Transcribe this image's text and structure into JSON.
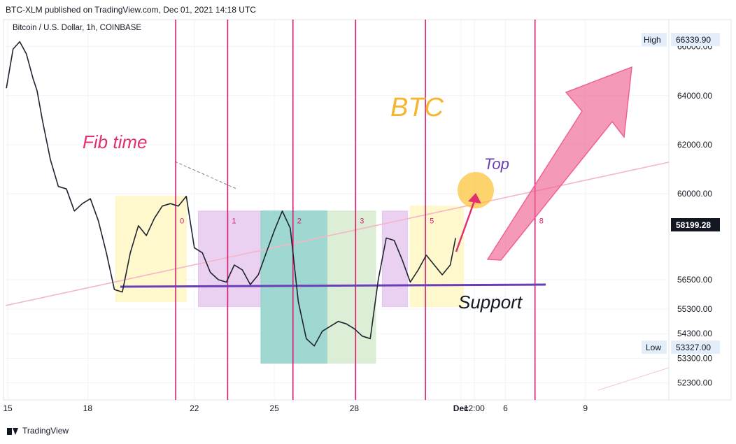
{
  "header": {
    "published": "BTC-XLM published on TradingView.com, Dec 01, 2021 14:18 UTC",
    "symbol": "Bitcoin / U.S. Dollar, 1h, COINBASE"
  },
  "footer": {
    "brand": "TradingView",
    "logo_icon": "tradingview-logo-icon"
  },
  "colors": {
    "price_line": "#1e2330",
    "fib_line": "#d81b72",
    "support": "#6a3fb5",
    "btc_text": "#f5b52e",
    "fib_text": "#e0306f",
    "top_text": "#6a3fb5",
    "arrow": "#f06292",
    "high_low_badge": "#e3eefa"
  },
  "chart_data": {
    "type": "line",
    "title": "BTC",
    "xlabel": "",
    "ylabel": "",
    "x_ticks": [
      "15",
      "18",
      "22",
      "25",
      "28",
      "Dec",
      "12:00",
      "6",
      "9"
    ],
    "y_ticks": [
      52300,
      53300,
      54300,
      55300,
      56500,
      60000,
      62000,
      64000,
      66000
    ],
    "y_tick_labels": [
      "52300.00",
      "53300.00",
      "54300.00",
      "55300.00",
      "56500.00",
      "60000.00",
      "62000.00",
      "64000.00",
      "66000.00"
    ],
    "ylim": [
      51600,
      67100
    ],
    "x_range_days": [
      14.92,
      39.8
    ],
    "series": [
      {
        "x": [
          14.95,
          15.2,
          15.45,
          15.7,
          15.95,
          16.1,
          16.3,
          16.6,
          16.9,
          17.2,
          17.5,
          17.8,
          18.1,
          18.4,
          18.7,
          19.0,
          19.3,
          19.6,
          19.9,
          20.2,
          20.5,
          20.8,
          21.1,
          21.4,
          21.7,
          22.0,
          22.3,
          22.6,
          22.9,
          23.2,
          23.5,
          23.8,
          24.1,
          24.4,
          24.7,
          25.0,
          25.3,
          25.6,
          25.9,
          26.2,
          26.5,
          26.8,
          27.1,
          27.4,
          27.7,
          28.0,
          28.3,
          28.6,
          28.9,
          29.2,
          29.5,
          29.8,
          30.1,
          30.4,
          30.7,
          31.0,
          31.3,
          31.6,
          31.8
        ],
        "values": [
          64300,
          65900,
          66200,
          65700,
          64700,
          64200,
          63000,
          61400,
          60300,
          60200,
          59300,
          59600,
          59800,
          58900,
          57600,
          56100,
          56000,
          57600,
          58700,
          58300,
          59000,
          59500,
          59600,
          59500,
          59900,
          57800,
          57600,
          56800,
          56500,
          56400,
          57100,
          56900,
          56300,
          56700,
          57600,
          58500,
          59300,
          58600,
          55600,
          54100,
          53800,
          54400,
          54600,
          54800,
          54700,
          54500,
          54200,
          54100,
          56500,
          58200,
          58100,
          57300,
          56400,
          56900,
          57500,
          57100,
          56700,
          57100,
          58199
        ]
      }
    ],
    "last_price": "58199.28",
    "high": {
      "label": "High",
      "value": "66339.90"
    },
    "low": {
      "label": "Low",
      "value": "53327.00"
    },
    "fib_time_lines": [
      {
        "x": 21.3,
        "label": "0"
      },
      {
        "x": 23.25,
        "label": "1"
      },
      {
        "x": 25.7,
        "label": "2"
      },
      {
        "x": 28.05,
        "label": "3"
      },
      {
        "x": 30.67,
        "label": "5"
      },
      {
        "x": 34.78,
        "label": "8"
      }
    ],
    "boxes": [
      {
        "x0": 19.05,
        "x1": 21.7,
        "y0": 55600,
        "y1": 59900,
        "color": "#fff7c4"
      },
      {
        "x0": 22.15,
        "x1": 24.5,
        "y0": 55400,
        "y1": 59300,
        "color": "#e6c8ee"
      },
      {
        "x0": 24.5,
        "x1": 27.0,
        "y0": 53100,
        "y1": 59300,
        "color": "#8ed1c8"
      },
      {
        "x0": 27.0,
        "x1": 28.8,
        "y0": 53100,
        "y1": 59300,
        "color": "#d6ebcf"
      },
      {
        "x0": 29.05,
        "x1": 30.0,
        "y0": 55400,
        "y1": 59300,
        "color": "#e6c8ee"
      },
      {
        "x0": 30.1,
        "x1": 32.1,
        "y0": 55400,
        "y1": 59500,
        "color": "#fff7c4"
      }
    ],
    "annotations": {
      "btc": "BTC",
      "fib_time": "Fib time",
      "top": "Top",
      "support": "Support"
    },
    "grid": true,
    "legend": "none"
  }
}
